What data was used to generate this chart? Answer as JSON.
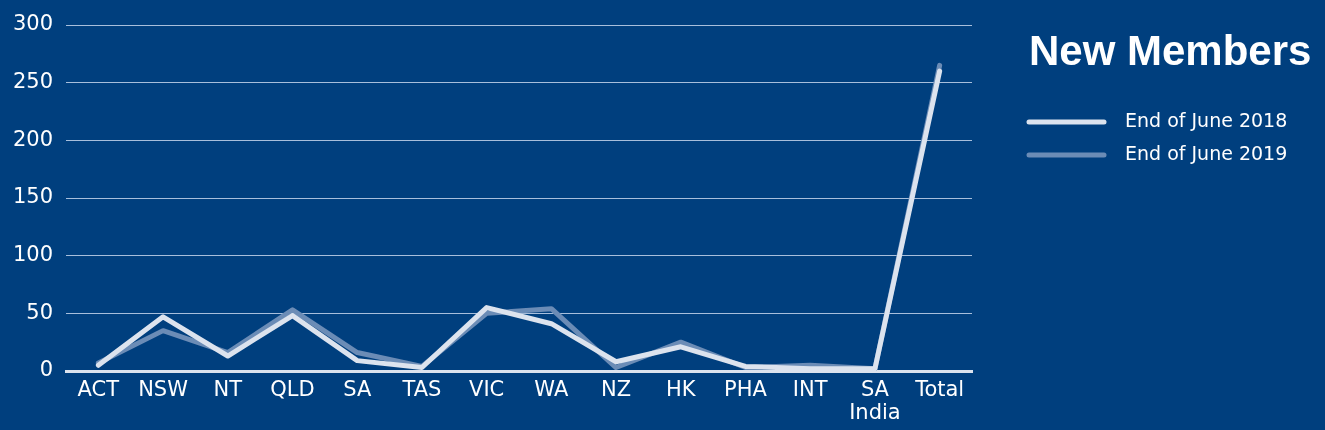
{
  "chart_data": {
    "type": "line",
    "title": "New Members",
    "categories": [
      "ACT",
      "NSW",
      "NT",
      "QLD",
      "SA",
      "TAS",
      "VIC",
      "WA",
      "NZ",
      "HK",
      "PHA",
      "INT",
      "SA India",
      "Total"
    ],
    "series": [
      {
        "name": "End of June 2018",
        "color": "#dce3ee",
        "values": [
          5,
          47,
          13,
          48,
          9,
          3,
          55,
          41,
          8,
          21,
          4,
          2,
          2,
          260
        ]
      },
      {
        "name": "End of June 2019",
        "color": "#6b8cb6",
        "values": [
          7,
          35,
          16,
          53,
          16,
          4,
          50,
          54,
          3,
          25,
          3,
          5,
          2,
          265
        ]
      }
    ],
    "ylim": [
      0,
      300
    ],
    "yticks": [
      0,
      50,
      100,
      150,
      200,
      250,
      300
    ],
    "grid": "y",
    "legend": "right"
  }
}
